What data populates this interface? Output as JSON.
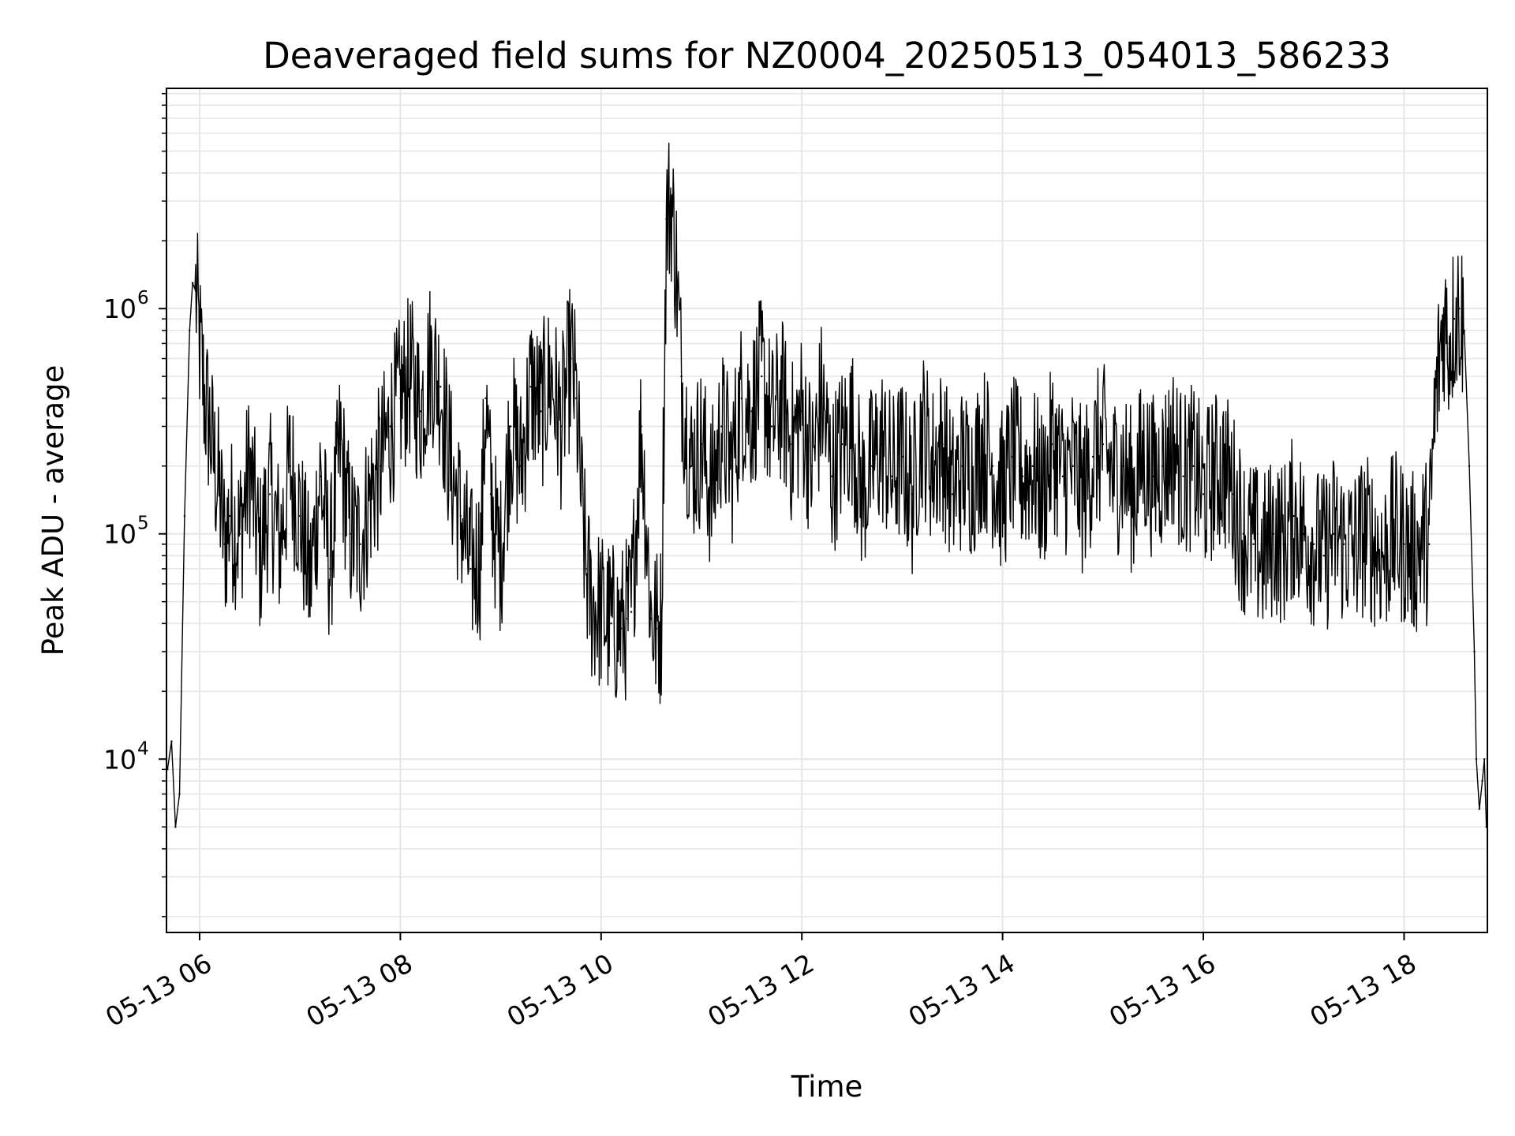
{
  "chart_data": {
    "type": "line",
    "title": "Deaveraged field sums for NZ0004_20250513_054013_586233",
    "xlabel": "Time",
    "ylabel": "Peak ADU - average",
    "x_unit": "hours (2025-05-13)",
    "xlim": [
      5.67,
      18.83
    ],
    "ylim": [
      1700,
      9500000
    ],
    "y_scale": "log",
    "grid": true,
    "legend": "none",
    "line_color": "#000000",
    "grid_color": "#e6e6e6",
    "x_ticks": [
      {
        "value": 6,
        "label": "05-13 06"
      },
      {
        "value": 8,
        "label": "05-13 08"
      },
      {
        "value": 10,
        "label": "05-13 10"
      },
      {
        "value": 12,
        "label": "05-13 12"
      },
      {
        "value": 14,
        "label": "05-13 14"
      },
      {
        "value": 16,
        "label": "05-13 16"
      },
      {
        "value": 18,
        "label": "05-13 18"
      }
    ],
    "y_ticks": [
      {
        "value": 10000,
        "base": "10",
        "exp": "4"
      },
      {
        "value": 100000,
        "base": "10",
        "exp": "5"
      },
      {
        "value": 1000000,
        "base": "10",
        "exp": "6"
      }
    ],
    "series": [
      {
        "x": [
          5.68,
          5.72,
          5.76,
          5.8,
          5.85,
          5.9,
          5.93,
          5.96,
          6.0,
          6.05,
          6.1,
          6.15,
          6.2,
          6.25,
          6.3,
          6.4,
          6.5,
          6.6,
          6.7,
          6.8,
          6.9,
          7.0,
          7.1,
          7.2,
          7.3,
          7.4,
          7.5,
          7.6,
          7.7,
          7.8,
          7.9,
          8.0,
          8.1,
          8.2,
          8.3,
          8.4,
          8.5,
          8.6,
          8.7,
          8.8,
          8.85,
          8.9,
          8.95,
          9.0,
          9.1,
          9.2,
          9.3,
          9.4,
          9.5,
          9.6,
          9.7,
          9.75,
          9.8,
          9.85,
          9.9,
          10.0,
          10.1,
          10.2,
          10.25,
          10.3,
          10.4,
          10.5,
          10.55,
          10.6,
          10.65,
          10.7,
          10.75,
          10.8,
          10.85,
          10.9,
          11.0,
          11.1,
          11.2,
          11.3,
          11.4,
          11.5,
          11.6,
          11.7,
          11.8,
          11.9,
          12.0,
          12.1,
          12.2,
          12.3,
          12.4,
          12.5,
          12.6,
          12.7,
          12.8,
          12.9,
          13.0,
          13.1,
          13.2,
          13.3,
          13.4,
          13.5,
          13.6,
          13.7,
          13.8,
          13.9,
          14.0,
          14.1,
          14.2,
          14.3,
          14.4,
          14.5,
          14.6,
          14.7,
          14.8,
          14.9,
          15.0,
          15.1,
          15.2,
          15.3,
          15.4,
          15.5,
          15.6,
          15.7,
          15.8,
          15.9,
          16.0,
          16.1,
          16.2,
          16.3,
          16.4,
          16.5,
          16.6,
          16.7,
          16.8,
          16.9,
          17.0,
          17.1,
          17.2,
          17.3,
          17.4,
          17.5,
          17.6,
          17.7,
          17.8,
          17.9,
          18.0,
          18.1,
          18.2,
          18.25,
          18.3,
          18.35,
          18.4,
          18.45,
          18.5,
          18.55,
          18.6,
          18.65,
          18.7,
          18.72,
          18.75,
          18.78,
          18.8,
          18.82
        ],
        "y": [
          9000,
          12000,
          5000,
          7000,
          120000,
          800000,
          1300000,
          1200000,
          700000,
          400000,
          300000,
          200000,
          150000,
          90000,
          120000,
          100000,
          200000,
          80000,
          150000,
          90000,
          200000,
          120000,
          60000,
          180000,
          70000,
          250000,
          100000,
          90000,
          150000,
          200000,
          300000,
          400000,
          500000,
          350000,
          600000,
          450000,
          200000,
          120000,
          70000,
          80000,
          400000,
          150000,
          100000,
          80000,
          300000,
          200000,
          450000,
          350000,
          500000,
          300000,
          600000,
          400000,
          150000,
          70000,
          50000,
          45000,
          40000,
          38000,
          42000,
          45000,
          300000,
          42000,
          38000,
          40000,
          2500000,
          3000000,
          1500000,
          500000,
          300000,
          200000,
          250000,
          150000,
          300000,
          200000,
          400000,
          350000,
          500000,
          300000,
          400000,
          250000,
          350000,
          200000,
          400000,
          180000,
          250000,
          300000,
          150000,
          200000,
          250000,
          180000,
          220000,
          150000,
          300000,
          200000,
          250000,
          150000,
          200000,
          180000,
          250000,
          200000,
          150000,
          220000,
          180000,
          200000,
          150000,
          250000,
          180000,
          200000,
          150000,
          220000,
          250000,
          180000,
          200000,
          150000,
          220000,
          180000,
          200000,
          250000,
          180000,
          200000,
          150000,
          180000,
          200000,
          150000,
          100000,
          90000,
          80000,
          100000,
          90000,
          120000,
          100000,
          90000,
          80000,
          100000,
          90000,
          85000,
          100000,
          90000,
          80000,
          100000,
          90000,
          80000,
          95000,
          90000,
          300000,
          600000,
          900000,
          700000,
          900000,
          1000000,
          800000,
          200000,
          30000,
          10000,
          6000,
          8000,
          10000,
          5000
        ]
      }
    ]
  }
}
